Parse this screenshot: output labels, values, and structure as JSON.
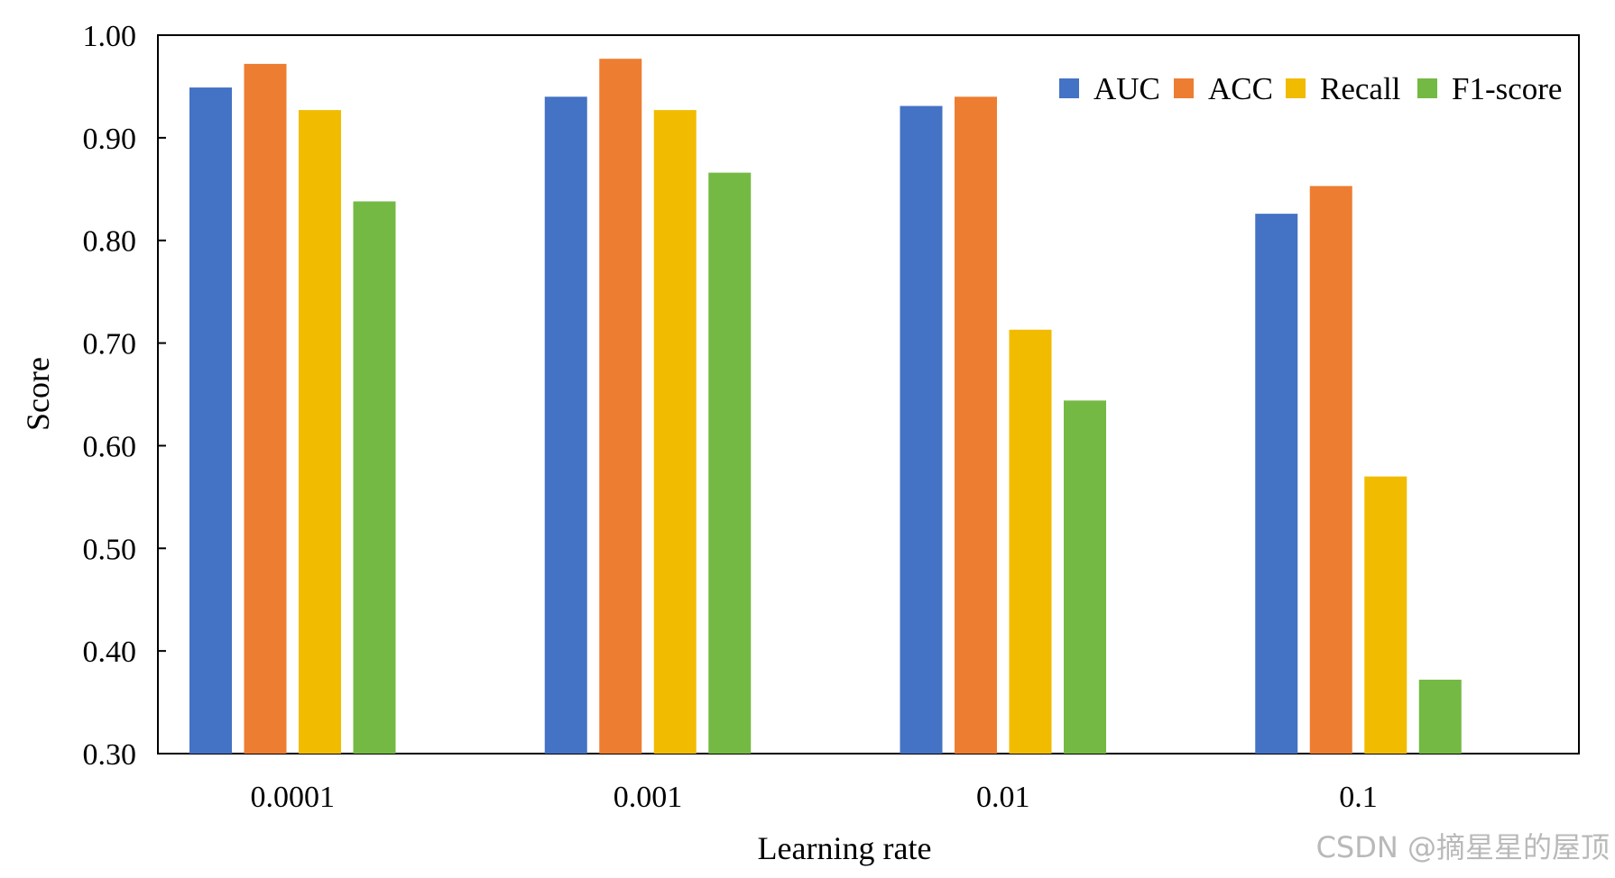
{
  "chart_data": {
    "type": "bar",
    "title": "",
    "xlabel": "Learning rate",
    "ylabel": "Score",
    "categories": [
      "0.0001",
      "0.001",
      "0.01",
      "0.1"
    ],
    "ylim": [
      0.3,
      1.0
    ],
    "yticks": [
      "0.30",
      "0.40",
      "0.50",
      "0.60",
      "0.70",
      "0.80",
      "0.90",
      "1.00"
    ],
    "grid": false,
    "legend_position": "top-right",
    "series": [
      {
        "name": "AUC",
        "color": "#4472C4",
        "values": [
          0.949,
          0.94,
          0.931,
          0.826
        ]
      },
      {
        "name": "ACC",
        "color": "#ED7D31",
        "values": [
          0.972,
          0.977,
          0.94,
          0.853
        ]
      },
      {
        "name": "Recall",
        "color": "#F1BB00",
        "values": [
          0.927,
          0.927,
          0.713,
          0.57
        ]
      },
      {
        "name": "F1-score",
        "color": "#74B943",
        "values": [
          0.838,
          0.866,
          0.644,
          0.372
        ]
      }
    ]
  },
  "watermark": "CSDN @摘星星的屋顶"
}
